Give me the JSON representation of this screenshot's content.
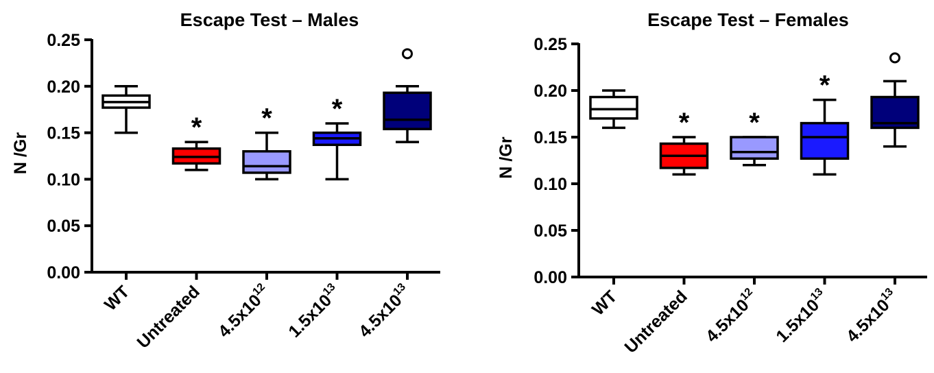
{
  "chart_data": [
    {
      "type": "box",
      "title": "Escape Test – Males",
      "ylabel": "N /Gr",
      "xlabel": "",
      "ylim": [
        0,
        0.25
      ],
      "yticks": [
        "0.00",
        "0.05",
        "0.10",
        "0.15",
        "0.20",
        "0.25"
      ],
      "categories": [
        {
          "base": "WT",
          "sup": ""
        },
        {
          "base": "Untreated",
          "sup": ""
        },
        {
          "base": "4.5x10",
          "sup": "12"
        },
        {
          "base": "1.5x10",
          "sup": "13"
        },
        {
          "base": "4.5x10",
          "sup": "13"
        }
      ],
      "boxes": [
        {
          "min": 0.15,
          "q1": 0.177,
          "median": 0.183,
          "q3": 0.19,
          "max": 0.2,
          "color": "#ffffff",
          "marker": "",
          "outliers": []
        },
        {
          "min": 0.11,
          "q1": 0.117,
          "median": 0.124,
          "q3": 0.133,
          "max": 0.14,
          "color": "#ff0000",
          "marker": "*",
          "outliers": []
        },
        {
          "min": 0.1,
          "q1": 0.107,
          "median": 0.114,
          "q3": 0.13,
          "max": 0.15,
          "color": "#9999ff",
          "marker": "*",
          "outliers": []
        },
        {
          "min": 0.1,
          "q1": 0.137,
          "median": 0.144,
          "q3": 0.15,
          "max": 0.16,
          "color": "#1a1aff",
          "marker": "*",
          "outliers": []
        },
        {
          "min": 0.14,
          "q1": 0.154,
          "median": 0.164,
          "q3": 0.193,
          "max": 0.2,
          "color": "#00007a",
          "marker": "",
          "outliers": [
            0.235
          ]
        }
      ]
    },
    {
      "type": "box",
      "title": "Escape Test – Females",
      "ylabel": "N /Gr",
      "xlabel": "",
      "ylim": [
        0,
        0.25
      ],
      "yticks": [
        "0.00",
        "0.05",
        "0.10",
        "0.15",
        "0.20",
        "0.25"
      ],
      "categories": [
        {
          "base": "WT",
          "sup": ""
        },
        {
          "base": "Untreated",
          "sup": ""
        },
        {
          "base": "4.5x10",
          "sup": "12"
        },
        {
          "base": "1.5x10",
          "sup": "13"
        },
        {
          "base": "4.5x10",
          "sup": "13"
        }
      ],
      "boxes": [
        {
          "min": 0.16,
          "q1": 0.17,
          "median": 0.18,
          "q3": 0.193,
          "max": 0.2,
          "color": "#ffffff",
          "marker": "*",
          "outliers": [],
          "markerHidden": true
        },
        {
          "min": 0.11,
          "q1": 0.117,
          "median": 0.13,
          "q3": 0.143,
          "max": 0.15,
          "color": "#ff0000",
          "marker": "*",
          "outliers": []
        },
        {
          "min": 0.12,
          "q1": 0.127,
          "median": 0.134,
          "q3": 0.15,
          "max": 0.15,
          "color": "#9999ff",
          "marker": "*",
          "outliers": []
        },
        {
          "min": 0.11,
          "q1": 0.127,
          "median": 0.15,
          "q3": 0.165,
          "max": 0.19,
          "color": "#1a1aff",
          "marker": "*",
          "outliers": []
        },
        {
          "min": 0.14,
          "q1": 0.16,
          "median": 0.165,
          "q3": 0.193,
          "max": 0.21,
          "color": "#00007a",
          "marker": "",
          "outliers": [
            0.235
          ]
        }
      ]
    }
  ]
}
